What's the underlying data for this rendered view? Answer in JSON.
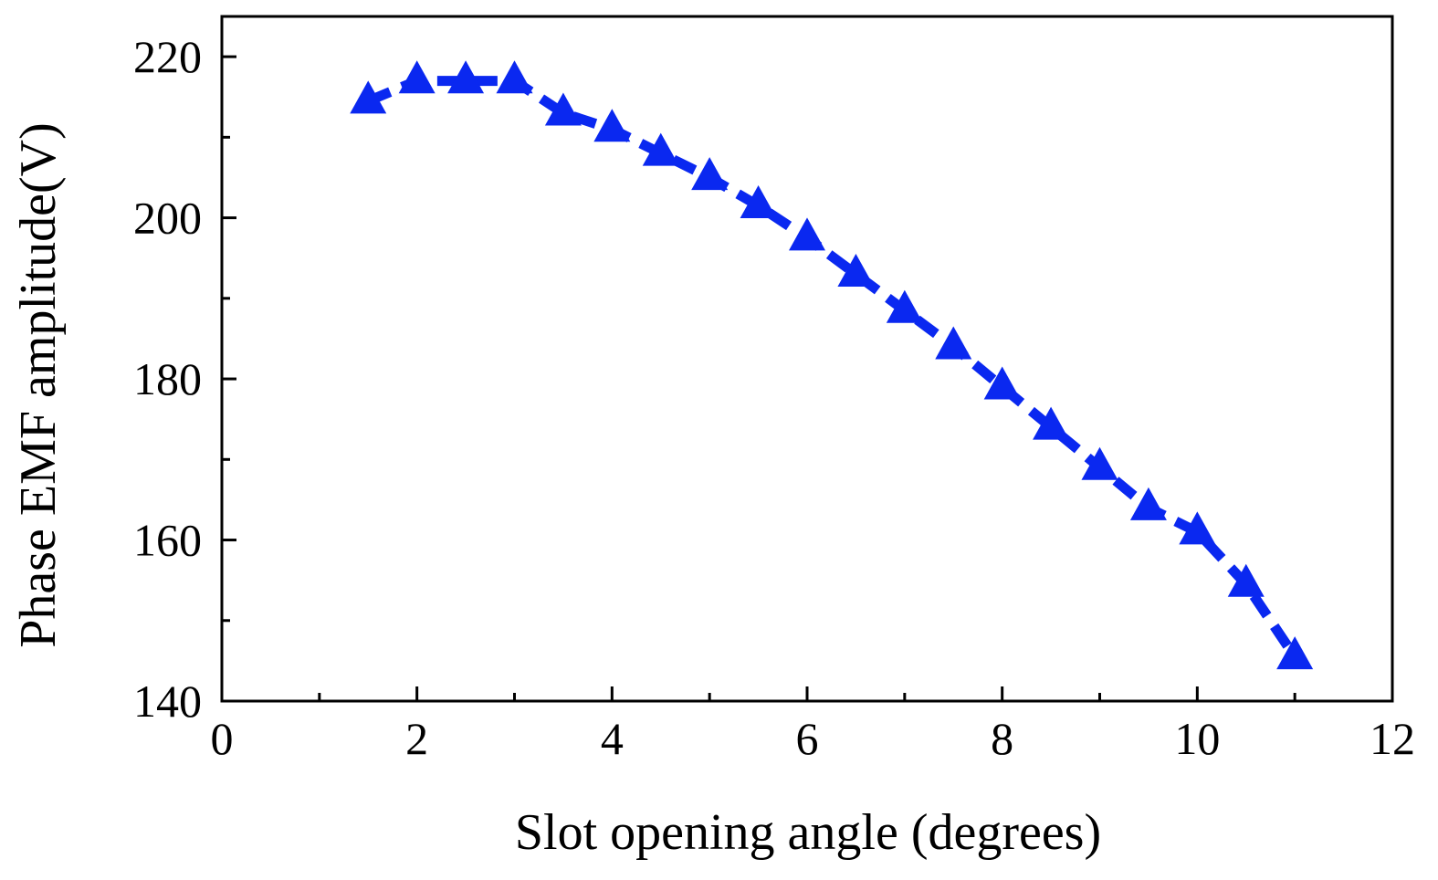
{
  "chart_data": {
    "type": "line",
    "title": "",
    "xlabel": "Slot opening angle (degrees)",
    "ylabel": "Phase EMF amplitude(V)",
    "xlim": [
      0,
      12
    ],
    "ylim": [
      140,
      225
    ],
    "x_ticks": [
      0,
      2,
      4,
      6,
      8,
      10,
      12
    ],
    "x_tick_labels": [
      "0",
      "2",
      "4",
      "6",
      "8",
      "10",
      "12"
    ],
    "x_minor_ticks": [
      1,
      3,
      5,
      7,
      9,
      11
    ],
    "y_ticks": [
      140,
      160,
      180,
      200,
      220
    ],
    "y_tick_labels": [
      "140",
      "160",
      "180",
      "200",
      "220"
    ],
    "y_minor_ticks": [
      150,
      170,
      190,
      210
    ],
    "grid": false,
    "legend": "none",
    "series": [
      {
        "color": "#0a28f0",
        "line_style": "dashed",
        "marker": "triangle",
        "x": [
          1.5,
          2,
          2.5,
          3,
          3.5,
          4,
          4.5,
          5,
          5.5,
          6,
          6.5,
          7,
          7.5,
          8,
          8.5,
          9,
          9.5,
          10,
          10.5,
          11
        ],
        "y": [
          214.5,
          217.0,
          217.0,
          217.0,
          213.0,
          211.0,
          208.0,
          205.0,
          201.5,
          197.5,
          193.0,
          188.5,
          184.0,
          179.0,
          174.0,
          169.0,
          164.0,
          161.0,
          154.5,
          145.5
        ]
      }
    ]
  }
}
